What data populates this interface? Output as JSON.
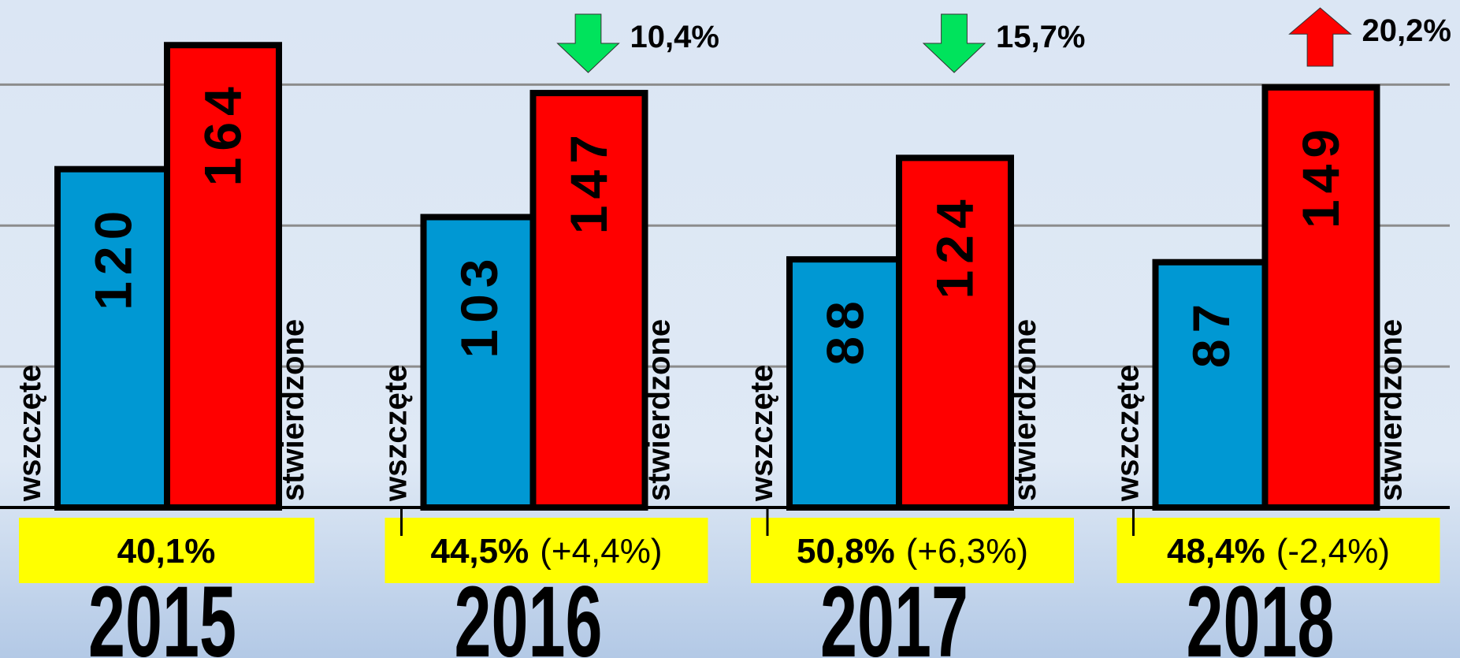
{
  "chart_data": {
    "type": "bar",
    "categories": [
      "2015",
      "2016",
      "2017",
      "2018"
    ],
    "series": [
      {
        "name": "wszczęte",
        "color": "#0098d3",
        "values": [
          120,
          103,
          88,
          87
        ]
      },
      {
        "name": "stwierdzone",
        "color": "#ff0000",
        "values": [
          164,
          147,
          124,
          149
        ]
      }
    ],
    "ylim": [
      0,
      180
    ],
    "yticks": [
      0,
      50,
      100,
      150
    ],
    "grid": true,
    "rates": [
      40.1,
      44.5,
      50.8,
      48.4
    ],
    "rate_labels": [
      "40,1%",
      "44,5%",
      "50,8%",
      "48,4%"
    ],
    "rate_changes": [
      null,
      4.4,
      6.3,
      -2.4
    ],
    "rate_change_labels": [
      null,
      "(+4,4%)",
      "(+6,3%)",
      "(-2,4%)"
    ],
    "rate_box_color": "#ffff00",
    "changes": [
      null,
      -10.4,
      -15.7,
      20.2
    ],
    "change_labels": [
      null,
      "10,4%",
      "15,7%",
      "20,2%"
    ],
    "up_color": "#ff0000",
    "down_color": "#00e35c"
  }
}
